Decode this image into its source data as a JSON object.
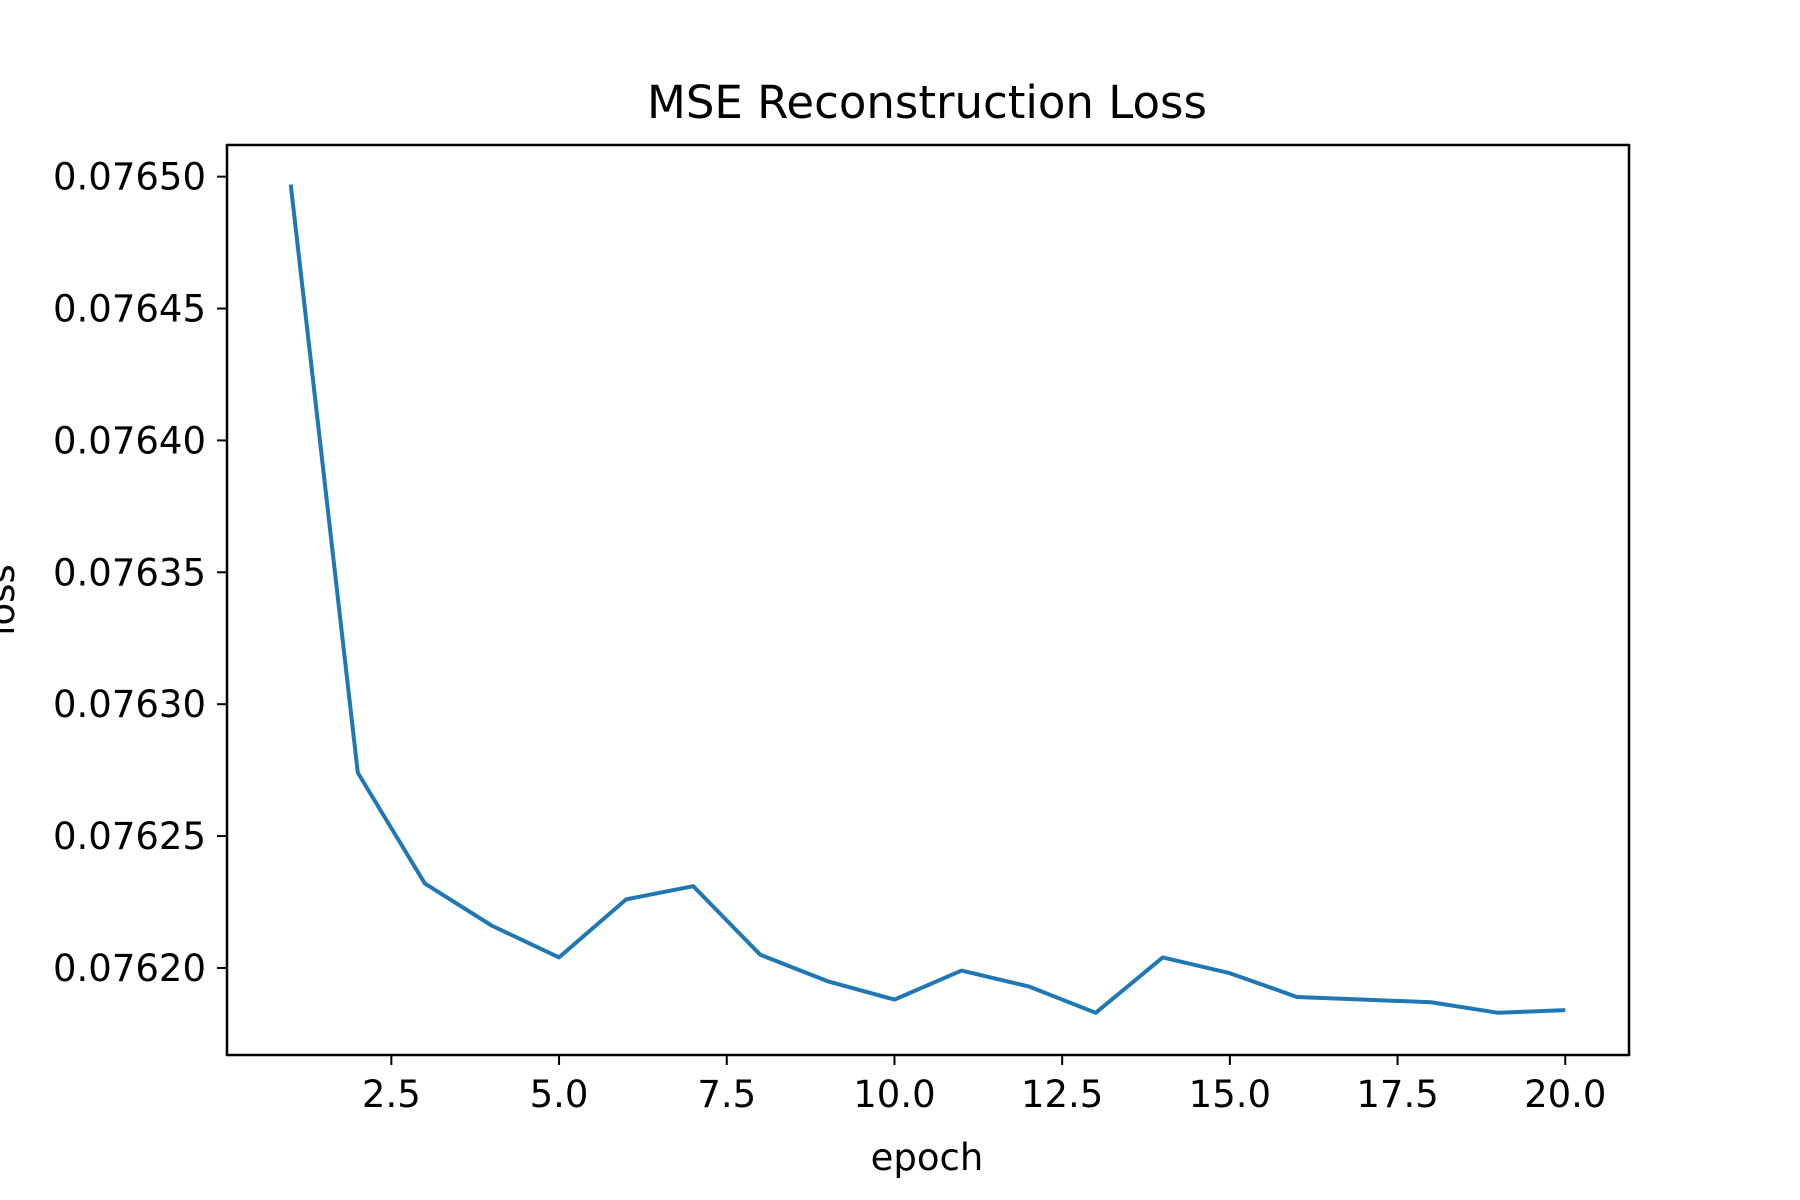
{
  "chart_data": {
    "type": "line",
    "title": "MSE Reconstruction Loss",
    "xlabel": "epoch",
    "ylabel": "loss",
    "x": [
      1,
      2,
      3,
      4,
      5,
      6,
      7,
      8,
      9,
      10,
      11,
      12,
      13,
      14,
      15,
      16,
      17,
      18,
      19,
      20
    ],
    "series": [
      {
        "values": [
          0.076497,
          0.076274,
          0.076232,
          0.076216,
          0.076204,
          0.076226,
          0.076231,
          0.076205,
          0.076195,
          0.076188,
          0.076199,
          0.076193,
          0.076183,
          0.076204,
          0.076198,
          0.076189,
          0.076188,
          0.076187,
          0.076183,
          0.076184
        ],
        "color": "#1f77b4"
      }
    ],
    "xlim": [
      0.05,
      20.95
    ],
    "ylim": [
      0.076167,
      0.076512
    ],
    "xticks": [
      2.5,
      5.0,
      7.5,
      10.0,
      12.5,
      15.0,
      17.5,
      20.0
    ],
    "xtick_labels": [
      "2.5",
      "5.0",
      "7.5",
      "10.0",
      "12.5",
      "15.0",
      "17.5",
      "20.0"
    ],
    "yticks": [
      0.0762,
      0.07625,
      0.0763,
      0.07635,
      0.0764,
      0.07645,
      0.0765
    ],
    "ytick_labels": [
      "0.07620",
      "0.07625",
      "0.07630",
      "0.07635",
      "0.07640",
      "0.07645",
      "0.07650"
    ],
    "grid": false,
    "legend": "none"
  }
}
